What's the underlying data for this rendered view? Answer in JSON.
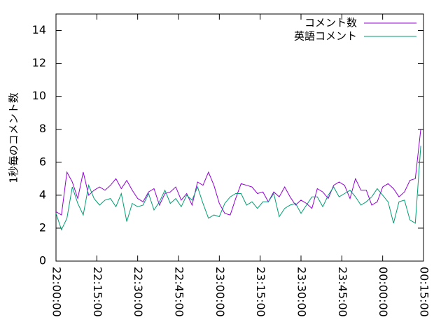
{
  "chart_data": {
    "type": "line",
    "ylabel": "1秒毎のコメント数",
    "x": [
      "22:00:00",
      "22:02:00",
      "22:04:00",
      "22:06:00",
      "22:08:00",
      "22:10:00",
      "22:12:00",
      "22:14:00",
      "22:16:00",
      "22:18:00",
      "22:20:00",
      "22:22:00",
      "22:24:00",
      "22:26:00",
      "22:28:00",
      "22:30:00",
      "22:32:00",
      "22:34:00",
      "22:36:00",
      "22:38:00",
      "22:40:00",
      "22:42:00",
      "22:44:00",
      "22:46:00",
      "22:48:00",
      "22:50:00",
      "22:52:00",
      "22:54:00",
      "22:56:00",
      "22:58:00",
      "23:00:00",
      "23:02:00",
      "23:04:00",
      "23:06:00",
      "23:08:00",
      "23:10:00",
      "23:12:00",
      "23:14:00",
      "23:16:00",
      "23:18:00",
      "23:20:00",
      "23:22:00",
      "23:24:00",
      "23:26:00",
      "23:28:00",
      "23:30:00",
      "23:32:00",
      "23:34:00",
      "23:36:00",
      "23:38:00",
      "23:40:00",
      "23:42:00",
      "23:44:00",
      "23:46:00",
      "23:48:00",
      "23:50:00",
      "23:52:00",
      "23:54:00",
      "23:56:00",
      "23:58:00",
      "00:00:00",
      "00:02:00",
      "00:04:00",
      "00:06:00",
      "00:08:00",
      "00:10:00",
      "00:12:00",
      "00:14:00"
    ],
    "series": [
      {
        "name": "コメント数",
        "color": "#9400d3",
        "values": [
          3.0,
          2.8,
          5.4,
          4.8,
          3.8,
          5.4,
          4.0,
          4.3,
          4.5,
          4.3,
          4.6,
          5.0,
          4.4,
          4.9,
          4.3,
          3.8,
          3.6,
          4.2,
          4.4,
          3.4,
          4.1,
          4.2,
          4.5,
          3.7,
          4.1,
          3.4,
          4.8,
          4.6,
          5.4,
          4.6,
          3.5,
          2.9,
          2.8,
          3.8,
          4.7,
          4.6,
          4.5,
          4.1,
          4.2,
          3.6,
          4.2,
          3.9,
          4.5,
          3.9,
          3.4,
          3.7,
          3.5,
          3.2,
          4.4,
          4.2,
          3.8,
          4.6,
          4.8,
          4.6,
          3.8,
          5.0,
          4.3,
          4.3,
          3.4,
          3.6,
          4.5,
          4.7,
          4.4,
          3.9,
          4.2,
          4.9,
          5.0,
          8.0
        ]
      },
      {
        "name": "英語コメント",
        "color": "#009e73",
        "values": [
          2.9,
          1.9,
          2.6,
          4.5,
          3.5,
          2.8,
          4.6,
          3.8,
          3.4,
          3.7,
          3.8,
          3.3,
          4.1,
          2.4,
          3.5,
          3.3,
          3.4,
          4.1,
          3.1,
          3.6,
          4.3,
          3.5,
          3.8,
          3.3,
          4.0,
          3.7,
          4.5,
          3.5,
          2.6,
          2.8,
          2.7,
          3.5,
          3.9,
          4.1,
          4.1,
          3.4,
          3.6,
          3.2,
          3.6,
          3.6,
          4.1,
          2.7,
          3.2,
          3.4,
          3.5,
          2.9,
          3.4,
          3.9,
          3.9,
          3.3,
          4.0,
          4.5,
          3.9,
          4.1,
          4.3,
          3.9,
          3.4,
          3.6,
          3.9,
          4.4,
          4.0,
          3.6,
          2.3,
          3.6,
          3.7,
          2.5,
          2.3,
          7.0
        ]
      }
    ],
    "xlim": [
      "22:00:00",
      "00:15:00"
    ],
    "xticks": [
      "22:00:00",
      "22:15:00",
      "22:30:00",
      "22:45:00",
      "23:00:00",
      "23:15:00",
      "23:30:00",
      "23:45:00",
      "00:00:00",
      "00:15:00"
    ],
    "ylim": [
      0,
      15
    ],
    "yticks": [
      0,
      2,
      4,
      6,
      8,
      10,
      12,
      14
    ],
    "legend": "upper-right",
    "grid": false
  }
}
